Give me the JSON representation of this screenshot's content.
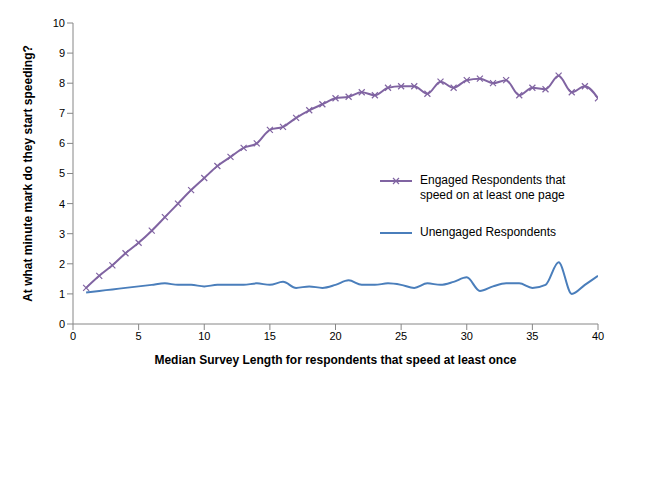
{
  "chart_data": {
    "type": "line",
    "x_label": "Median Survey Length for respondents that speed at least once",
    "y_label": "At what minute mark do they start speeding?",
    "x": [
      1,
      2,
      3,
      4,
      5,
      6,
      7,
      8,
      9,
      10,
      11,
      12,
      13,
      14,
      15,
      16,
      17,
      18,
      19,
      20,
      21,
      22,
      23,
      24,
      25,
      26,
      27,
      28,
      29,
      30,
      31,
      32,
      33,
      34,
      35,
      36,
      37,
      38,
      39,
      40
    ],
    "series": [
      {
        "name": "Engaged Respondents that speed on at least one page",
        "color": "#8064a2",
        "marker": "x",
        "line_style": "solid",
        "values": [
          1.2,
          1.6,
          1.95,
          2.35,
          2.7,
          3.1,
          3.55,
          4.0,
          4.45,
          4.85,
          5.25,
          5.55,
          5.85,
          6.0,
          6.45,
          6.55,
          6.85,
          7.1,
          7.3,
          7.5,
          7.55,
          7.7,
          7.6,
          7.85,
          7.9,
          7.9,
          7.65,
          8.05,
          7.85,
          8.1,
          8.15,
          8.0,
          8.1,
          7.6,
          7.85,
          7.8,
          8.25,
          7.7,
          7.9,
          7.5
        ]
      },
      {
        "name": "Unengaged Respondents",
        "color": "#4a7ebb",
        "marker": "none",
        "line_style": "solid",
        "values": [
          1.05,
          1.1,
          1.15,
          1.2,
          1.25,
          1.3,
          1.35,
          1.3,
          1.3,
          1.25,
          1.3,
          1.3,
          1.3,
          1.35,
          1.3,
          1.4,
          1.2,
          1.25,
          1.2,
          1.3,
          1.45,
          1.3,
          1.3,
          1.35,
          1.3,
          1.2,
          1.35,
          1.3,
          1.4,
          1.55,
          1.1,
          1.25,
          1.35,
          1.35,
          1.2,
          1.3,
          2.05,
          1.0,
          1.3,
          1.6
        ]
      }
    ],
    "xlim": [
      0,
      40
    ],
    "xticks": [
      0,
      5,
      10,
      15,
      20,
      25,
      30,
      35,
      40
    ],
    "ylim": [
      0,
      10
    ],
    "yticks": [
      0,
      1,
      2,
      3,
      4,
      5,
      6,
      7,
      8,
      9,
      10
    ],
    "grid": false,
    "legend": "right"
  }
}
